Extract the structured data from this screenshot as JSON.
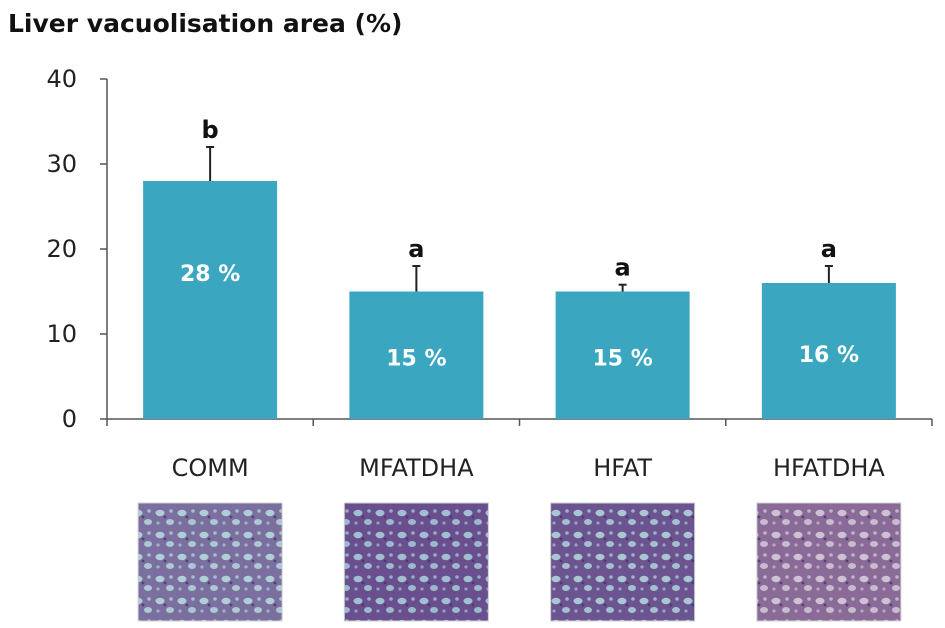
{
  "chart_data": {
    "type": "bar",
    "title": "Liver vacuolisation area (%)",
    "xlabel": "",
    "ylabel": "",
    "ylim": [
      0,
      40
    ],
    "yticks": [
      0,
      10,
      20,
      30,
      40
    ],
    "categories": [
      "COMM",
      "MFATDHA",
      "HFAT",
      "HFATDHA"
    ],
    "values": [
      28,
      15,
      15,
      16
    ],
    "error_upper": [
      32,
      18,
      15.8,
      18
    ],
    "value_labels": [
      "28 %",
      "15 %",
      "15 %",
      "16 %"
    ],
    "significance_letters": [
      "b",
      "a",
      "a",
      "a"
    ],
    "bar_color": "#3aa6c0",
    "grid": false,
    "legend": "none"
  },
  "micrographs": [
    {
      "category": "COMM",
      "base_color": "#7b6fa0",
      "vacuole_color": "#b9dfe0"
    },
    {
      "category": "MFATDHA",
      "base_color": "#6a4f8e",
      "vacuole_color": "#a9d3dc"
    },
    {
      "category": "HFAT",
      "base_color": "#6b548f",
      "vacuole_color": "#b3dbe0"
    },
    {
      "category": "HFATDHA",
      "base_color": "#8a6a97",
      "vacuole_color": "#d8d0dd"
    }
  ]
}
